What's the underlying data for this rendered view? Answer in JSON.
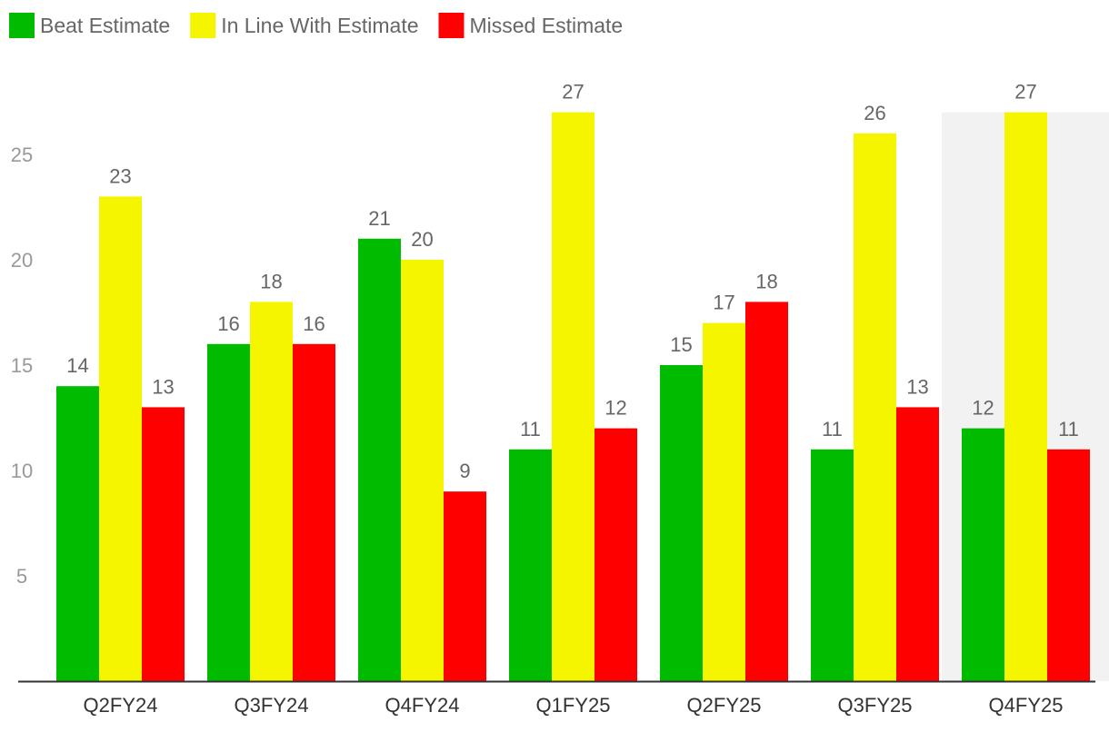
{
  "chart_data": {
    "type": "bar",
    "title": "",
    "xlabel": "",
    "ylabel": "",
    "categories": [
      "Q2FY24",
      "Q3FY24",
      "Q4FY24",
      "Q1FY25",
      "Q2FY25",
      "Q3FY25",
      "Q4FY25"
    ],
    "series": [
      {
        "name": "Beat Estimate",
        "color": "#00bb00",
        "values": [
          14,
          16,
          21,
          11,
          15,
          11,
          12
        ]
      },
      {
        "name": "In Line With Estimate",
        "color": "#f5f500",
        "values": [
          23,
          18,
          20,
          27,
          17,
          26,
          27
        ]
      },
      {
        "name": "Missed Estimate",
        "color": "#ff0000",
        "values": [
          13,
          16,
          9,
          12,
          18,
          13,
          11
        ]
      }
    ],
    "y_ticks": [
      5,
      10,
      15,
      20,
      25
    ],
    "ylim": [
      0,
      27.5
    ],
    "grid": false,
    "legend_position": "top-left",
    "highlighted_category": "Q4FY25",
    "highlight_color": "#f2f2f2"
  }
}
